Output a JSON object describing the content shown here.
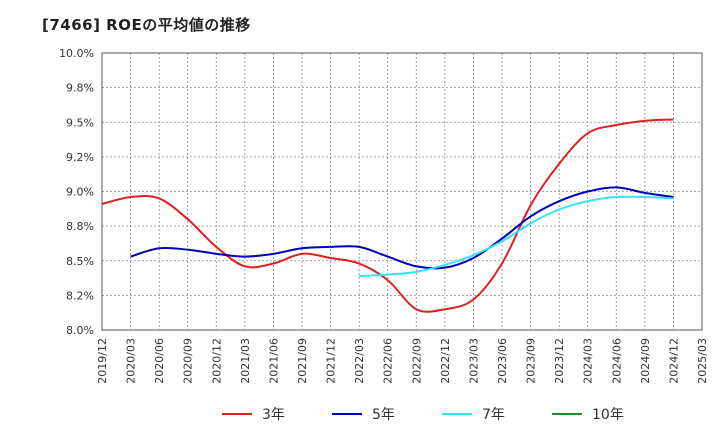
{
  "chart_data": {
    "type": "line",
    "title": "[7466]  ROEの平均値の推移",
    "xlabel": "",
    "ylabel": "",
    "ylim": [
      8.0,
      10.0
    ],
    "yticks": [
      8.0,
      8.25,
      8.5,
      8.75,
      9.0,
      9.25,
      9.5,
      9.75,
      10.0
    ],
    "ytick_labels": [
      "8.0%",
      "8.2%",
      "8.5%",
      "8.8%",
      "9.0%",
      "9.2%",
      "9.5%",
      "9.8%",
      "10.0%"
    ],
    "categories": [
      "2019/12",
      "2020/03",
      "2020/06",
      "2020/09",
      "2020/12",
      "2021/03",
      "2021/06",
      "2021/09",
      "2021/12",
      "2022/03",
      "2022/06",
      "2022/09",
      "2022/12",
      "2023/03",
      "2023/06",
      "2023/09",
      "2023/12",
      "2024/03",
      "2024/06",
      "2024/09",
      "2024/12",
      "2025/03"
    ],
    "grid": true,
    "legend_position": "bottom",
    "series": [
      {
        "name": "3年",
        "color": "#dd2020",
        "values": [
          8.91,
          8.96,
          8.95,
          8.8,
          8.6,
          8.46,
          8.48,
          8.55,
          8.52,
          8.48,
          8.36,
          8.15,
          8.15,
          8.22,
          8.48,
          8.9,
          9.2,
          9.42,
          9.48,
          9.51,
          9.52,
          null
        ]
      },
      {
        "name": "5年",
        "color": "#0000bb",
        "values": [
          null,
          8.53,
          8.59,
          8.58,
          8.55,
          8.53,
          8.55,
          8.59,
          8.6,
          8.6,
          8.53,
          8.46,
          8.45,
          8.52,
          8.66,
          8.82,
          8.93,
          9.0,
          9.03,
          8.99,
          8.96,
          null
        ]
      },
      {
        "name": "7年",
        "color": "#33e5f0",
        "values": [
          null,
          null,
          null,
          null,
          null,
          null,
          null,
          null,
          null,
          8.39,
          8.4,
          8.42,
          8.47,
          8.54,
          8.64,
          8.77,
          8.87,
          8.93,
          8.96,
          8.96,
          8.95,
          null
        ]
      },
      {
        "name": "10年",
        "color": "#228b22",
        "values": [
          null,
          null,
          null,
          null,
          null,
          null,
          null,
          null,
          null,
          null,
          null,
          null,
          null,
          null,
          null,
          null,
          null,
          null,
          null,
          null,
          null,
          null
        ]
      }
    ]
  }
}
